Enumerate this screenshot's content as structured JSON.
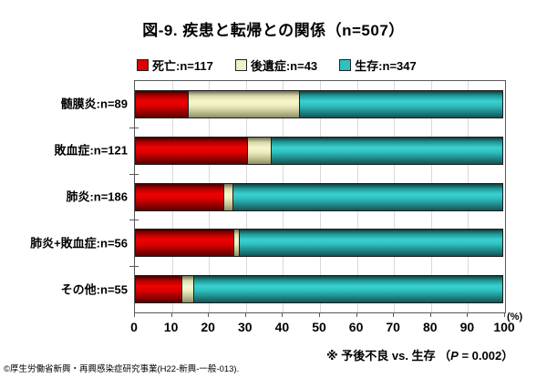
{
  "chart": {
    "title": "図-9. 疾患と転帰との関係（n=507）",
    "footnote": {
      "pre": "※ 予後不良 vs. 生存 （",
      "italic": "P",
      "post": " = 0.002）"
    },
    "source": "©厚生労働省新興・再興感染症研究事業(H22-新興-一般-013).",
    "x_axis_unit": "(%)"
  },
  "chart_data": {
    "type": "bar",
    "orientation": "horizontal-stacked",
    "title": "図-9. 疾患と転帰との関係（n=507）",
    "total_n": 507,
    "categories": [
      {
        "label": "髄膜炎",
        "n": 89
      },
      {
        "label": "敗血症",
        "n": 121
      },
      {
        "label": "肺炎",
        "n": 186
      },
      {
        "label": "肺炎+敗血症",
        "n": 56
      },
      {
        "label": "その他",
        "n": 55
      }
    ],
    "series": [
      {
        "name": "死亡",
        "legend_label": "死亡:n=117",
        "n": 117,
        "color": "#dd0000",
        "counts": [
          13,
          37,
          45,
          15,
          7
        ],
        "values_pct": [
          14.6,
          30.6,
          24.2,
          26.8,
          12.7
        ]
      },
      {
        "name": "後遺症",
        "legend_label": "後遺症:n=43",
        "n": 43,
        "color": "#efefc8",
        "counts": [
          27,
          8,
          5,
          1,
          2
        ],
        "values_pct": [
          30.3,
          6.6,
          2.7,
          1.8,
          3.6
        ]
      },
      {
        "name": "生存",
        "legend_label": "生存:n=347",
        "n": 347,
        "color": "#2fc0c0",
        "counts": [
          49,
          76,
          136,
          40,
          46
        ],
        "values_pct": [
          55.1,
          62.8,
          73.1,
          71.4,
          83.6
        ]
      }
    ],
    "x_ticks": [
      0,
      10,
      20,
      30,
      40,
      50,
      60,
      70,
      80,
      90,
      100
    ],
    "xlim": [
      0,
      100
    ],
    "x_unit": "(%)",
    "grid": true,
    "legend_position": "top",
    "footnote": "※ 予後不良 vs. 生存 （P = 0.002）",
    "source": "©厚生労働省新興・再興感染症研究事業(H22-新興-一般-013)."
  }
}
